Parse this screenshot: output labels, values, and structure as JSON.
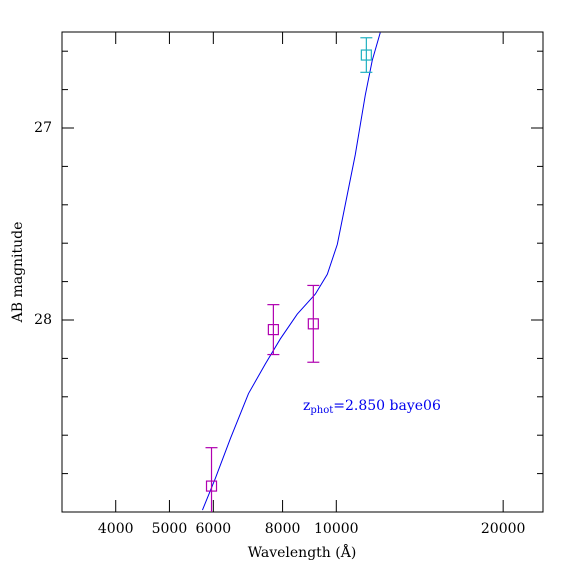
{
  "chart_data": {
    "type": "scatter",
    "xlabel": "Wavelength (Å)",
    "ylabel": "AB magnitude",
    "xlog": true,
    "y_inverted": true,
    "xlim": [
      3200,
      23600
    ],
    "ylim": [
      26.5,
      29
    ],
    "xticks": [
      4000,
      5000,
      6000,
      8000,
      10000,
      20000
    ],
    "yticks": [
      27,
      28
    ],
    "yticks_minor": [
      26.6,
      26.8,
      27.2,
      27.4,
      27.6,
      27.8,
      28.2,
      28.4,
      28.6,
      28.8
    ],
    "points": {
      "x": [
        5955,
        7700,
        9090,
        11330
      ],
      "y": [
        28.865,
        28.05,
        28.02,
        26.62
      ],
      "yerr": [
        0.2,
        0.13,
        0.2,
        0.09
      ],
      "colors": [
        "#b000b0",
        "#b000b0",
        "#b000b0",
        "#20b0c0"
      ]
    },
    "model": {
      "color": "#0000ee",
      "x": [
        5735,
        6052,
        6442,
        6944,
        7450,
        7927,
        8504,
        9166,
        9634,
        10042,
        10380,
        10819,
        11279,
        11611,
        12003
      ],
      "y": [
        28.99,
        28.824,
        28.617,
        28.383,
        28.228,
        28.098,
        27.969,
        27.865,
        27.762,
        27.606,
        27.399,
        27.14,
        26.829,
        26.648,
        26.503
      ]
    },
    "annotation": {
      "main": "z",
      "sub": "phot",
      "rest": "=2.850 baye06",
      "color": "#0000ee"
    }
  }
}
